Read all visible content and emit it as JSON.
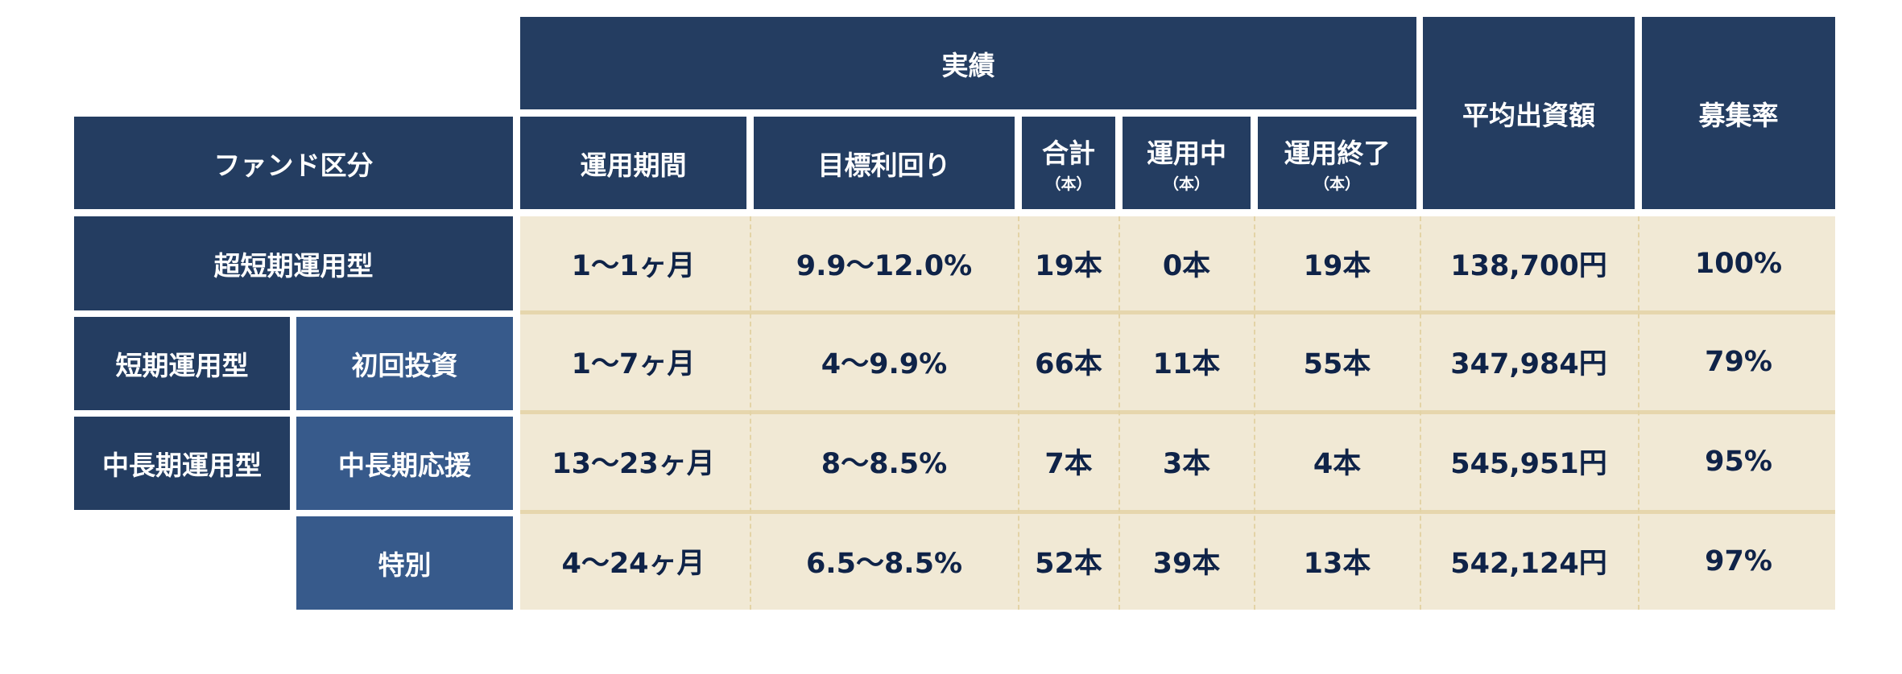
{
  "header": {
    "group": "実績",
    "fund_category": "ファンド区分",
    "columns": [
      {
        "label": "運用期間",
        "unit": ""
      },
      {
        "label": "目標利回り",
        "unit": ""
      },
      {
        "label": "合計",
        "unit": "（本）"
      },
      {
        "label": "運用中",
        "unit": "（本）"
      },
      {
        "label": "運用終了",
        "unit": "（本）"
      }
    ],
    "avg_investment": "平均出資額",
    "recruitment_rate": "募集率"
  },
  "categories": {
    "ultra_short": "超短期運用型",
    "short": "短期運用型",
    "mid_long": "中長期運用型",
    "first_investment": "初回投資",
    "mid_long_support": "中長期応援",
    "special": "特別"
  },
  "rows": [
    {
      "period": "1〜1ヶ月",
      "yield": "9.9〜12.0%",
      "total": "19本",
      "active": "0本",
      "ended": "19本",
      "avg": "138,700円",
      "rate": "100%"
    },
    {
      "period": "1〜7ヶ月",
      "yield": "4〜9.9%",
      "total": "66本",
      "active": "11本",
      "ended": "55本",
      "avg": "347,984円",
      "rate": "79%"
    },
    {
      "period": "13〜23ヶ月",
      "yield": "8〜8.5%",
      "total": "7本",
      "active": "3本",
      "ended": "4本",
      "avg": "545,951円",
      "rate": "95%"
    },
    {
      "period": "4〜24ヶ月",
      "yield": "6.5〜8.5%",
      "total": "52本",
      "active": "39本",
      "ended": "13本",
      "avg": "542,124円",
      "rate": "97%"
    }
  ],
  "colors": {
    "header": "#243d61",
    "subheader": "#375a8b",
    "cell_bg": "#f1e9d5",
    "text": "#0f2348"
  }
}
